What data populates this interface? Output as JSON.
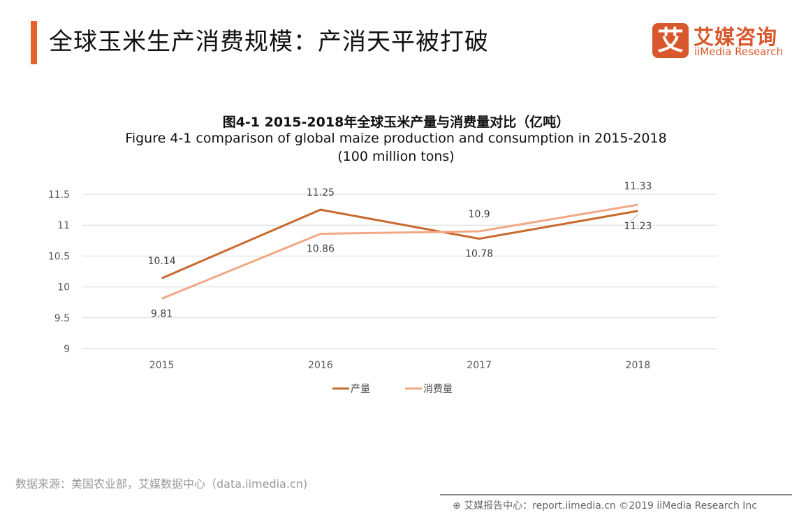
{
  "header": {
    "title": "全球玉米生产消费规模：产消天平被打破",
    "logo_mark": "艾",
    "logo_cn": "艾媒咨询",
    "logo_en": "iiMedia Research"
  },
  "chart_data": {
    "type": "line",
    "title_cn": "图4-1 2015-2018年全球玉米产量与消费量对比（亿吨）",
    "title_en": "Figure 4-1 comparison  of global maize production and consumption  in 2015-2018",
    "title_unit": "(100 million tons)",
    "categories": [
      "2015",
      "2016",
      "2017",
      "2018"
    ],
    "y_ticks": [
      "9",
      "9.5",
      "10",
      "10.5",
      "11",
      "11.5"
    ],
    "ylim": [
      9,
      11.5
    ],
    "grid": true,
    "legend_position": "bottom",
    "series": [
      {
        "name": "产量",
        "values": [
          10.14,
          11.25,
          10.78,
          11.23
        ],
        "labels": [
          "10.14",
          "11.25",
          "10.78",
          "11.23"
        ],
        "color": "#C9692D"
      },
      {
        "name": "消费量",
        "values": [
          9.81,
          10.86,
          10.9,
          11.33
        ],
        "labels": [
          "9.81",
          "10.86",
          "10.9",
          "11.33"
        ],
        "color": "#F2A886"
      }
    ]
  },
  "footer": {
    "source": "数据来源：美国农业部，艾媒数据中心（data.iimedia.cn)",
    "copyright": "艾媒报告中心：report.iimedia.cn  ©2019  iiMedia Research  Inc"
  }
}
